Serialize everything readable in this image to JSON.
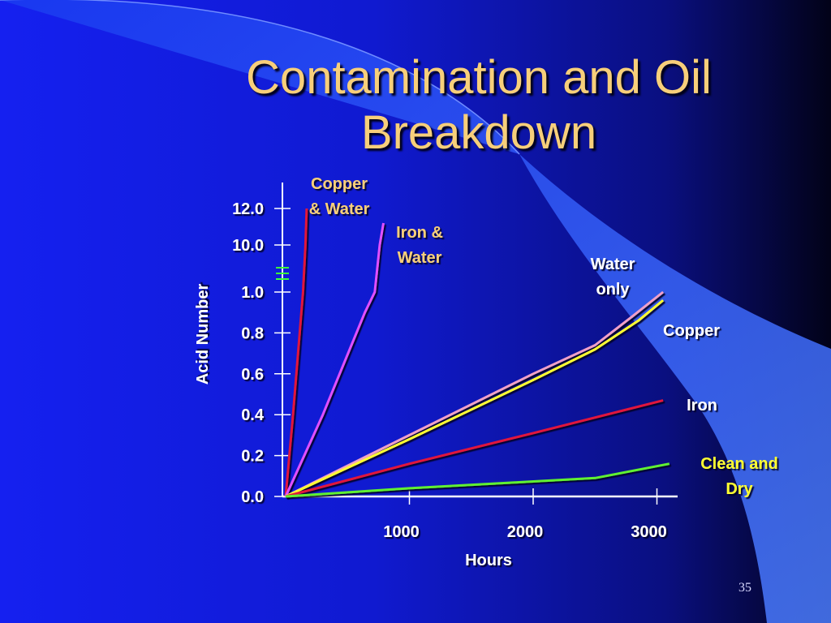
{
  "slide": {
    "title_line1": "Contamination and Oil",
    "title_line2": "Breakdown",
    "slide_number": "35"
  },
  "colors": {
    "title": "#f7cf7a",
    "copper_water": "#e0163c",
    "iron_water": "#e050ff",
    "water_only": "#f0a0c8",
    "copper": "#ffff30",
    "iron": "#e0163c",
    "clean_dry": "#60f030",
    "series_label_orange": "#f7cf7a",
    "series_label_white": "#ffffff",
    "series_label_yellow": "#ffff30"
  },
  "chart_data": {
    "type": "line",
    "title": "",
    "xlabel": "Hours",
    "ylabel": "Acid Number",
    "x_ticks": [
      1000,
      2000,
      3000
    ],
    "x_tick_labels": [
      "1000",
      "2000",
      "3000"
    ],
    "y_tick_labels": [
      "0.0",
      "0.2",
      "0.4",
      "0.6",
      "0.8",
      "1.0",
      "10.0",
      "12.0"
    ],
    "y_axis_break": "between 1.0 and 10.0",
    "xlim": [
      0,
      3300
    ],
    "grid": false,
    "series": [
      {
        "name": "Copper & Water",
        "label_lines": [
          "Copper",
          "& Water"
        ],
        "label_color": "#f7cf7a",
        "points": [
          [
            0,
            0.0
          ],
          [
            60,
            0.4
          ],
          [
            140,
            1.0
          ],
          [
            160,
            10.0
          ],
          [
            170,
            12.0
          ]
        ]
      },
      {
        "name": "Iron & Water",
        "label_lines": [
          "Iron &",
          "Water"
        ],
        "label_color": "#f7cf7a",
        "points": [
          [
            0,
            0.0
          ],
          [
            300,
            0.4
          ],
          [
            640,
            0.9
          ],
          [
            720,
            1.0
          ],
          [
            760,
            10.0
          ],
          [
            790,
            11.2
          ]
        ]
      },
      {
        "name": "Water only",
        "label_lines": [
          "Water",
          "only"
        ],
        "label_color": "#ffffff",
        "points": [
          [
            0,
            0.0
          ],
          [
            1000,
            0.3
          ],
          [
            2000,
            0.6
          ],
          [
            2500,
            0.74
          ],
          [
            2800,
            0.88
          ],
          [
            3050,
            1.0
          ]
        ]
      },
      {
        "name": "Copper",
        "label_lines": [
          "Copper"
        ],
        "label_color": "#ffffff",
        "points": [
          [
            0,
            0.0
          ],
          [
            1000,
            0.28
          ],
          [
            2000,
            0.57
          ],
          [
            2500,
            0.72
          ],
          [
            2850,
            0.86
          ],
          [
            3050,
            0.96
          ]
        ]
      },
      {
        "name": "Iron",
        "label_lines": [
          "Iron"
        ],
        "label_color": "#ffffff",
        "points": [
          [
            0,
            0.0
          ],
          [
            1000,
            0.16
          ],
          [
            2000,
            0.31
          ],
          [
            3050,
            0.47
          ]
        ]
      },
      {
        "name": "Clean and Dry",
        "label_lines": [
          "Clean and",
          "Dry"
        ],
        "label_color": "#ffff30",
        "points": [
          [
            0,
            0.0
          ],
          [
            1000,
            0.04
          ],
          [
            2500,
            0.09
          ],
          [
            3100,
            0.16
          ]
        ]
      }
    ]
  }
}
